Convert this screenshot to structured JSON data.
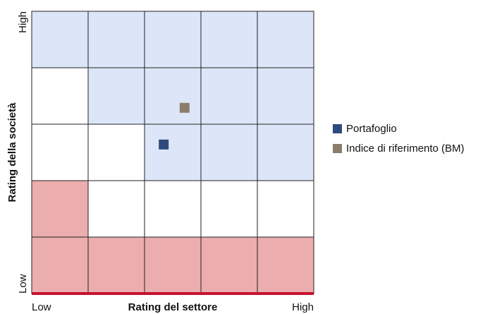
{
  "chart_data": {
    "type": "scatter",
    "x_label": "Rating del settore",
    "y_label": "Rating della società",
    "xlim": [
      0,
      5
    ],
    "ylim": [
      0,
      5
    ],
    "xticks": [
      {
        "value": 0,
        "label": "Low"
      },
      {
        "value": 5,
        "label": "High"
      }
    ],
    "yticks": [
      {
        "value": 0,
        "label": "Low"
      },
      {
        "value": 5,
        "label": "High"
      }
    ],
    "zones": [
      [
        "#dce6f8",
        "#dce6f8",
        "#dce6f8",
        "#dce6f8",
        "#dce6f8"
      ],
      [
        "#ffffff",
        "#dce6f8",
        "#dce6f8",
        "#dce6f8",
        "#dce6f8"
      ],
      [
        "#ffffff",
        "#ffffff",
        "#dce6f8",
        "#dce6f8",
        "#dce6f8"
      ],
      [
        "#ebadad",
        "#ffffff",
        "#ffffff",
        "#ffffff",
        "#ffffff"
      ],
      [
        "#ebadad",
        "#ebadad",
        "#ebadad",
        "#ebadad",
        "#ebadad"
      ]
    ],
    "series": [
      {
        "name": "Portafoglio",
        "color": "#2e4a7d",
        "x": [
          2.34
        ],
        "values": [
          2.64
        ]
      },
      {
        "name": "Indice di riferimento (BM)",
        "color": "#8c7d6b",
        "x": [
          2.71
        ],
        "values": [
          3.29
        ]
      }
    ]
  }
}
